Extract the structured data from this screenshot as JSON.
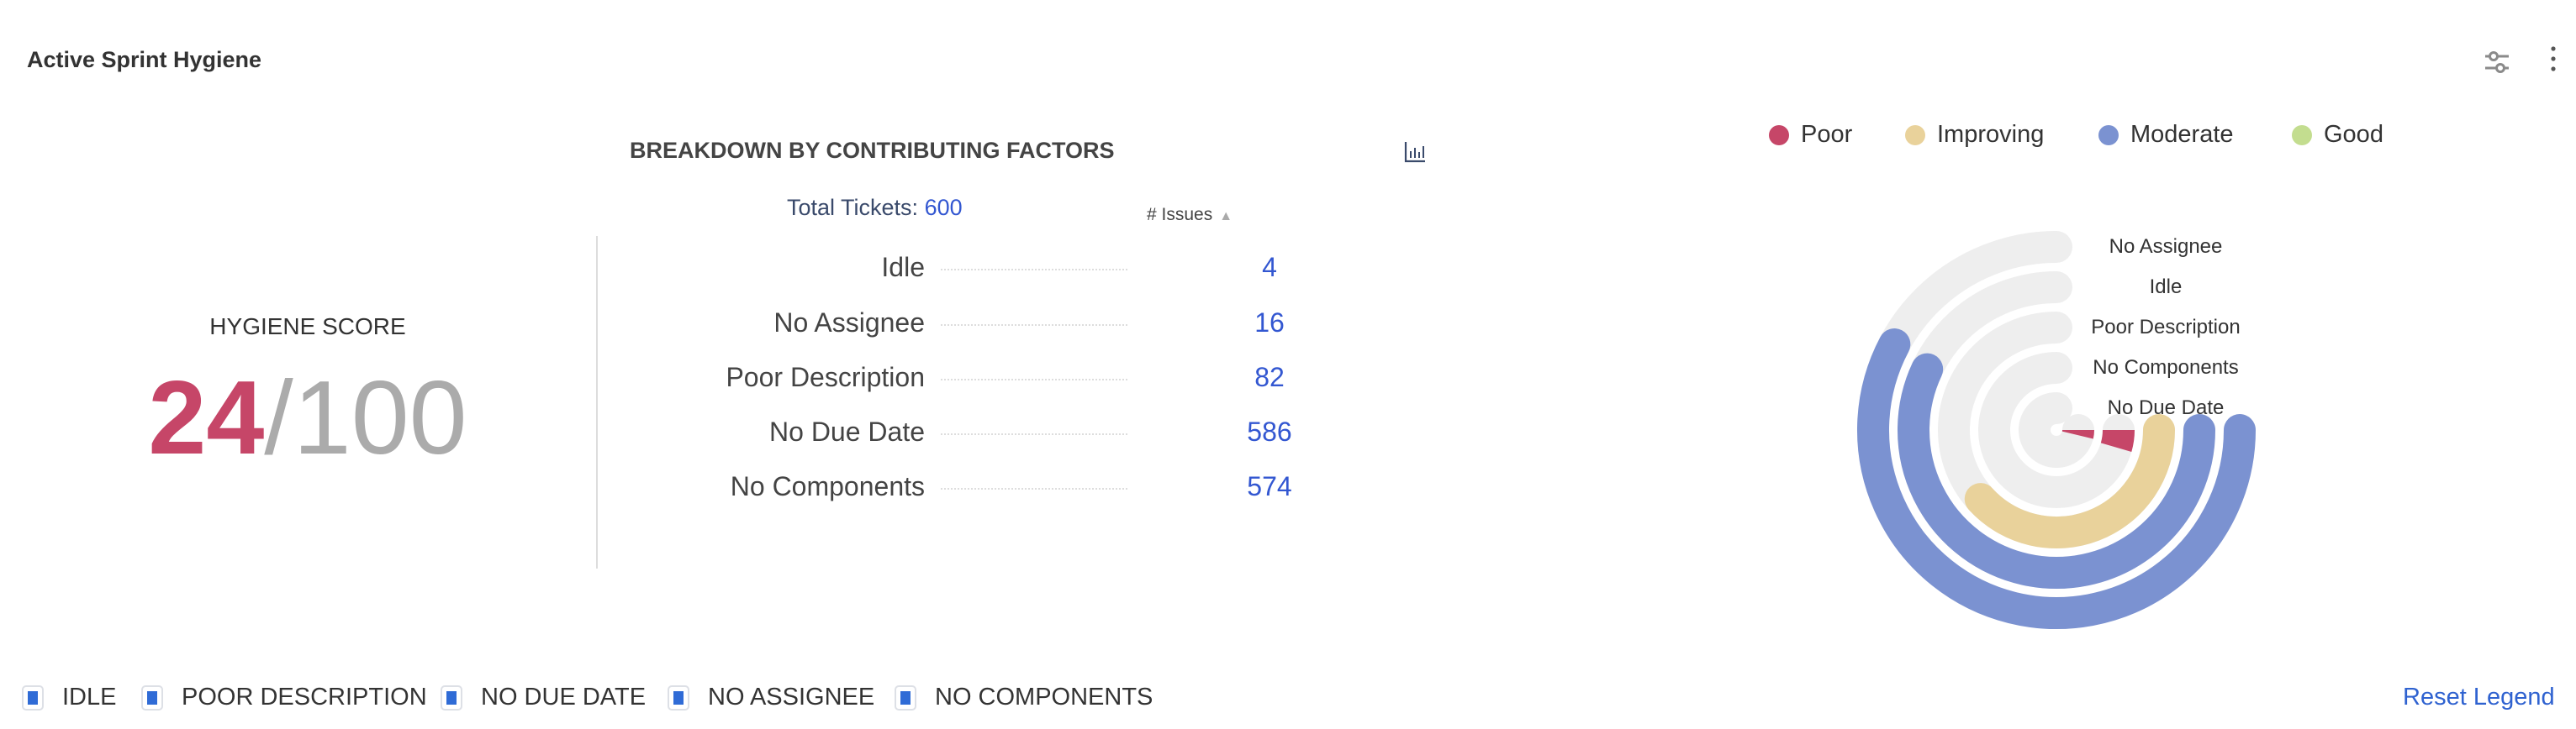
{
  "header": {
    "title": "Active Sprint Hygiene",
    "icons": [
      "sliders-icon",
      "kebab-menu-icon"
    ]
  },
  "score": {
    "label": "HYGIENE SCORE",
    "value": "24",
    "separator": "/",
    "max": "100",
    "value_color": "#c64668"
  },
  "breakdown": {
    "title": "BREAKDOWN BY CONTRIBUTING FACTORS",
    "total_label": "Total Tickets:",
    "total_value": "600",
    "column_header": "# Issues",
    "rows": [
      {
        "label": "Idle",
        "value": "4"
      },
      {
        "label": "No Assignee",
        "value": "16"
      },
      {
        "label": "Poor Description",
        "value": "82"
      },
      {
        "label": "No Due Date",
        "value": "586"
      },
      {
        "label": "No Components",
        "value": "574"
      }
    ]
  },
  "chart_data": {
    "type": "radial-bar",
    "legend": [
      {
        "name": "Poor",
        "color": "#c64668"
      },
      {
        "name": "Improving",
        "color": "#e9d29b"
      },
      {
        "name": "Moderate",
        "color": "#7b92d1"
      },
      {
        "name": "Good",
        "color": "#c3dd8f"
      }
    ],
    "legend_position": "top",
    "track_color": "#eeeeee",
    "categories": [
      "No Assignee",
      "Idle",
      "Poor Description",
      "No Components",
      "No Due Date"
    ],
    "values_percent": [
      77,
      76,
      51,
      6,
      5
    ],
    "status": [
      "Moderate",
      "Moderate",
      "Improving",
      "Poor",
      "Poor"
    ]
  },
  "footer": {
    "legend_items": [
      "IDLE",
      "POOR DESCRIPTION",
      "NO DUE DATE",
      "NO ASSIGNEE",
      "NO COMPONENTS"
    ],
    "reset_label": "Reset Legend"
  }
}
